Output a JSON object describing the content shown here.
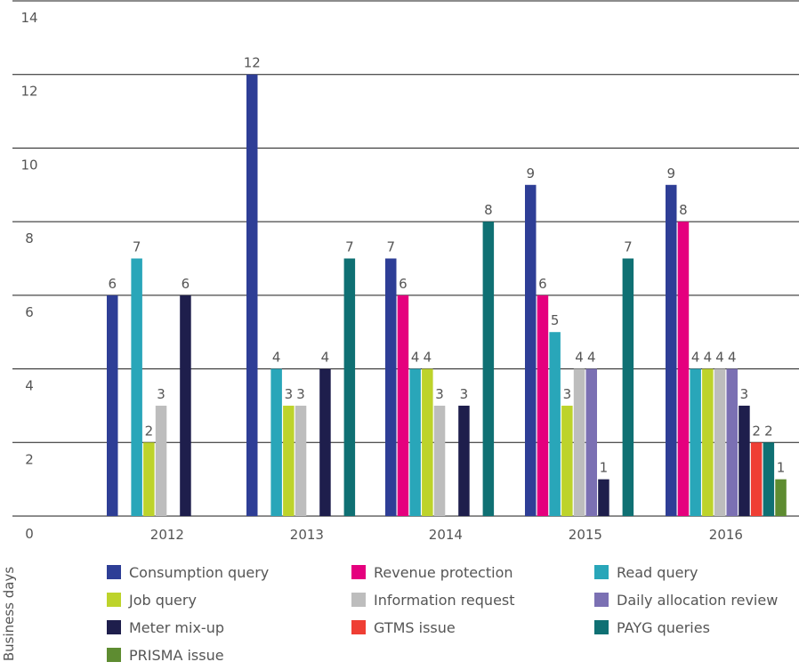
{
  "chart_data": {
    "type": "bar",
    "categories": [
      "2012",
      "2013",
      "2014",
      "2015",
      "2016"
    ],
    "ylabel": "Business days",
    "ylim": [
      0,
      14
    ],
    "yticks": [
      0,
      2,
      4,
      6,
      8,
      10,
      12,
      14
    ],
    "grid": true,
    "legend_position": "bottom",
    "series": [
      {
        "name": "Consumption query",
        "color": "#2E3E96",
        "values": [
          6,
          12,
          7,
          9,
          9
        ]
      },
      {
        "name": "Revenue protection",
        "color": "#E5007E",
        "values": [
          null,
          null,
          6,
          6,
          8
        ]
      },
      {
        "name": "Read query",
        "color": "#29A6B9",
        "values": [
          7,
          4,
          4,
          5,
          4
        ]
      },
      {
        "name": "Job query",
        "color": "#BDD32B",
        "values": [
          2,
          3,
          4,
          3,
          4
        ]
      },
      {
        "name": "Information request",
        "color": "#BDBDBD",
        "values": [
          3,
          3,
          3,
          4,
          4
        ]
      },
      {
        "name": "Daily allocation review",
        "color": "#7B70B3",
        "values": [
          null,
          null,
          null,
          4,
          4
        ]
      },
      {
        "name": "Meter mix-up",
        "color": "#1E1E4C",
        "values": [
          6,
          4,
          3,
          1,
          3
        ]
      },
      {
        "name": "GTMS issue",
        "color": "#EF3E34",
        "values": [
          null,
          null,
          null,
          null,
          2
        ]
      },
      {
        "name": "PAYG queries",
        "color": "#0F7073",
        "values": [
          null,
          7,
          8,
          7,
          2
        ]
      },
      {
        "name": "PRISMA issue",
        "color": "#5E8C31",
        "values": [
          null,
          null,
          null,
          null,
          1
        ]
      }
    ]
  }
}
